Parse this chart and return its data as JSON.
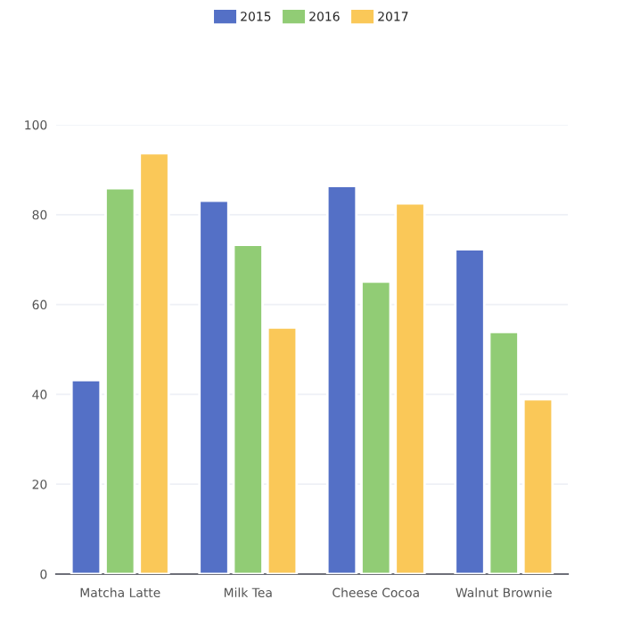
{
  "chart_data": {
    "type": "bar",
    "categories": [
      "Matcha Latte",
      "Milk Tea",
      "Cheese Cocoa",
      "Walnut Brownie"
    ],
    "series": [
      {
        "name": "2015",
        "color": "#5470c6",
        "values": [
          43.2,
          83.1,
          86.4,
          72.3
        ]
      },
      {
        "name": "2016",
        "color": "#91cc75",
        "values": [
          85.9,
          73.3,
          65.1,
          53.9
        ]
      },
      {
        "name": "2017",
        "color": "#fac858",
        "values": [
          93.7,
          54.9,
          82.5,
          38.9
        ]
      }
    ],
    "ylim": [
      0,
      100
    ],
    "yticks": [
      0,
      20,
      40,
      60,
      80,
      100
    ],
    "grid": "y",
    "legend": "top"
  }
}
